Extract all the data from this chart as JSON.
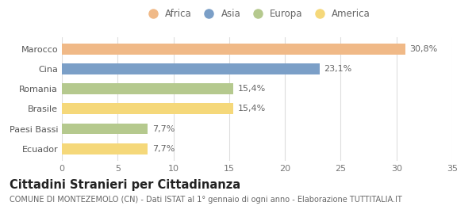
{
  "categories": [
    "Marocco",
    "Cina",
    "Romania",
    "Brasile",
    "Paesi Bassi",
    "Ecuador"
  ],
  "values": [
    30.8,
    23.1,
    15.4,
    15.4,
    7.7,
    7.7
  ],
  "labels": [
    "30,8%",
    "23,1%",
    "15,4%",
    "15,4%",
    "7,7%",
    "7,7%"
  ],
  "colors": [
    "#f0b987",
    "#7b9fc7",
    "#b5c98e",
    "#f5d87a",
    "#b5c98e",
    "#f5d87a"
  ],
  "legend": [
    {
      "label": "Africa",
      "color": "#f0b987"
    },
    {
      "label": "Asia",
      "color": "#7b9fc7"
    },
    {
      "label": "Europa",
      "color": "#b5c98e"
    },
    {
      "label": "America",
      "color": "#f5d87a"
    }
  ],
  "xlim": [
    0,
    35
  ],
  "xticks": [
    0,
    5,
    10,
    15,
    20,
    25,
    30,
    35
  ],
  "title": "Cittadini Stranieri per Cittadinanza",
  "subtitle": "COMUNE DI MONTEZEMOLO (CN) - Dati ISTAT al 1° gennaio di ogni anno - Elaborazione TUTTITALIA.IT",
  "background_color": "#ffffff",
  "bar_height": 0.55,
  "grid_color": "#dddddd",
  "label_fontsize": 8.0,
  "tick_fontsize": 8.0,
  "title_fontsize": 10.5,
  "subtitle_fontsize": 7.0,
  "legend_fontsize": 8.5
}
